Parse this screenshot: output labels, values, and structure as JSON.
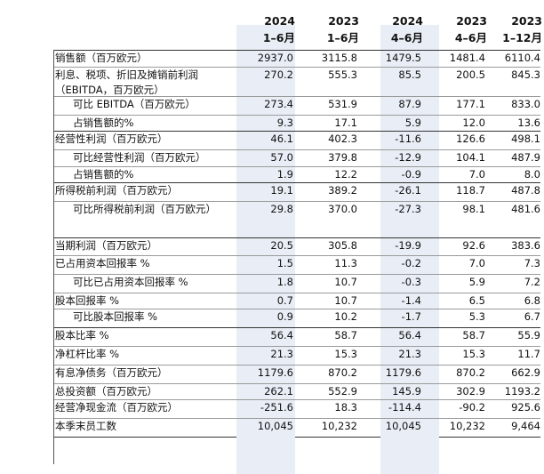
{
  "headers": [
    {
      "year": "2024",
      "period": "1–6月"
    },
    {
      "year": "2023",
      "period": "1–6月"
    },
    {
      "year": "2024",
      "period": "4–6月"
    },
    {
      "year": "2023",
      "period": "4–6月"
    },
    {
      "year": "2023",
      "period": "1–12月"
    }
  ],
  "rows": [
    {
      "label": "销售额（百万欧元）",
      "indent": false,
      "values": [
        "2937.0",
        "3115.8",
        "1479.5",
        "1481.4",
        "6110.4"
      ]
    },
    {
      "label": "利息、税项、折旧及摊销前利润（EBITDA，百万欧元）",
      "indent": false,
      "values": [
        "270.2",
        "555.3",
        "85.5",
        "200.5",
        "845.3"
      ]
    },
    {
      "label": "可比 EBITDA（百万欧元）",
      "indent": true,
      "values": [
        "273.4",
        "531.9",
        "87.9",
        "177.1",
        "833.0"
      ]
    },
    {
      "label": "占销售额的%",
      "indent": true,
      "values": [
        "9.3",
        "17.1",
        "5.9",
        "12.0",
        "13.6"
      ]
    },
    {
      "label": "经营性利润（百万欧元）",
      "indent": false,
      "values": [
        "46.1",
        "402.3",
        "-11.6",
        "126.6",
        "498.1"
      ]
    },
    {
      "label": "可比经营性利润（百万欧元）",
      "indent": true,
      "values": [
        "57.0",
        "379.8",
        "-12.9",
        "104.1",
        "487.9"
      ]
    },
    {
      "label": "占销售额的%",
      "indent": true,
      "values": [
        "1.9",
        "12.2",
        "-0.9",
        "7.0",
        "8.0"
      ]
    },
    {
      "label": "所得税前利润（百万欧元）",
      "indent": false,
      "values": [
        "19.1",
        "389.2",
        "-26.1",
        "118.7",
        "487.8"
      ]
    },
    {
      "label": "可比所得税前利润（百万欧元）",
      "indent": true,
      "values": [
        "29.8",
        "370.0",
        "-27.3",
        "98.1",
        "481.6"
      ]
    },
    {
      "label": "当期利润（百万欧元）",
      "indent": false,
      "values": [
        "20.5",
        "305.8",
        "-19.9",
        "92.6",
        "383.6"
      ]
    },
    {
      "label": "已占用资本回报率 %",
      "indent": false,
      "values": [
        "1.5",
        "11.3",
        "-0.2",
        "7.0",
        "7.3"
      ]
    },
    {
      "label": "可比已占用资本回报率 %",
      "indent": true,
      "values": [
        "1.8",
        "10.7",
        "-0.3",
        "5.9",
        "7.2"
      ]
    },
    {
      "label": "股本回报率 %",
      "indent": false,
      "values": [
        "0.7",
        "10.7",
        "-1.4",
        "6.5",
        "6.8"
      ]
    },
    {
      "label": "可比股本回报率 %",
      "indent": true,
      "values": [
        "0.9",
        "10.2",
        "-1.7",
        "5.3",
        "6.7"
      ]
    },
    {
      "label": "股本比率 %",
      "indent": false,
      "values": [
        "56.4",
        "58.7",
        "56.4",
        "58.7",
        "55.9"
      ]
    },
    {
      "label": "净杠杆比率 %",
      "indent": false,
      "values": [
        "21.3",
        "15.3",
        "21.3",
        "15.3",
        "11.7"
      ]
    },
    {
      "label": "有息净债务（百万欧元）",
      "indent": false,
      "values": [
        "1179.6",
        "870.2",
        "1179.6",
        "870.2",
        "662.9"
      ]
    },
    {
      "label": "总投资额（百万欧元）",
      "indent": false,
      "values": [
        "262.1",
        "552.9",
        "145.9",
        "302.9",
        "1193.2"
      ]
    },
    {
      "label": "经营净现金流（百万欧元）",
      "indent": false,
      "values": [
        "-251.6",
        "18.3",
        "-114.4",
        "-90.2",
        "925.6"
      ]
    },
    {
      "label": "本季末员工数",
      "indent": false,
      "values": [
        "10,045",
        "10,232",
        "10,045",
        "10,232",
        "9,464"
      ]
    }
  ],
  "colors": {
    "shade": "#e9eef6"
  }
}
